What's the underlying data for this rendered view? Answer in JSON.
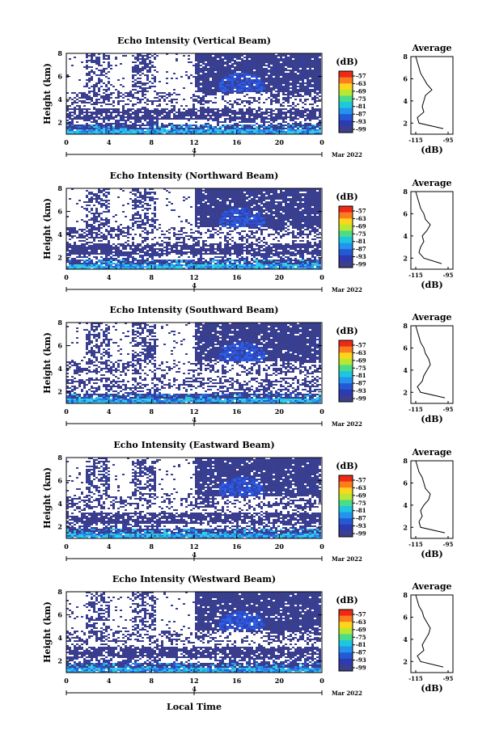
{
  "figure": {
    "xaxis_title": "Local Time",
    "date_label": "Mar 2022",
    "day_label": "4",
    "colorbar_unit": "(dB)",
    "colorbar_ticks": [
      "-57",
      "-63",
      "-69",
      "-75",
      "-81",
      "-87",
      "-93",
      "-99"
    ],
    "colorbar_colors": [
      "#ee2a16",
      "#fb7d1e",
      "#fdd51c",
      "#b8e831",
      "#4bdc8a",
      "#1fc6e0",
      "#2393ee",
      "#2459d6",
      "#2e3bb0",
      "#3c3f8c"
    ],
    "x_ticks": [
      "0",
      "4",
      "8",
      "12",
      "16",
      "20",
      "0"
    ],
    "y_ticks": [
      "2",
      "4",
      "6",
      "8"
    ],
    "y_label": "Height (km)",
    "profile_title": "Average",
    "profile_ticks": [
      "-115",
      "-95"
    ],
    "profile_unit": "(dB)"
  },
  "chart_data": [
    {
      "type": "heatmap",
      "title": "Echo Intensity (Vertical Beam)",
      "xlabel": "Local Time",
      "ylabel": "Height (km)",
      "xlim": [
        0,
        24
      ],
      "ylim": [
        1,
        8
      ],
      "colorbar_range": [
        -99,
        -57
      ],
      "profile": {
        "title": "Average",
        "heights": [
          1.5,
          2.0,
          2.5,
          3.0,
          3.5,
          4.0,
          4.5,
          5.0,
          5.5,
          6.0,
          6.5,
          7.0,
          7.5,
          8.0
        ],
        "values": [
          -98,
          -113,
          -114,
          -110,
          -111,
          -110,
          -109,
          -105,
          -108,
          -110,
          -112,
          -113,
          -114,
          -115
        ]
      }
    },
    {
      "type": "heatmap",
      "title": "Echo Intensity (Northward Beam)",
      "xlabel": "Local Time",
      "ylabel": "Height (km)",
      "xlim": [
        0,
        24
      ],
      "ylim": [
        1,
        8
      ],
      "colorbar_range": [
        -99,
        -57
      ],
      "profile": {
        "title": "Average",
        "heights": [
          1.5,
          2.0,
          2.5,
          3.0,
          3.5,
          4.0,
          4.5,
          5.0,
          5.5,
          6.0,
          6.5,
          7.0,
          7.5,
          8.0
        ],
        "values": [
          -99,
          -110,
          -113,
          -112,
          -110,
          -111,
          -108,
          -106,
          -109,
          -110,
          -112,
          -113,
          -114,
          -115
        ]
      }
    },
    {
      "type": "heatmap",
      "title": "Echo Intensity (Southward Beam)",
      "xlabel": "Local Time",
      "ylabel": "Height (km)",
      "xlim": [
        0,
        24
      ],
      "ylim": [
        1,
        8
      ],
      "colorbar_range": [
        -99,
        -57
      ],
      "profile": {
        "title": "Average",
        "heights": [
          1.5,
          2.0,
          2.5,
          3.0,
          3.5,
          4.0,
          4.5,
          5.0,
          5.5,
          6.0,
          6.5,
          7.0,
          7.5,
          8.0
        ],
        "values": [
          -97,
          -112,
          -114,
          -111,
          -110,
          -108,
          -106,
          -107,
          -109,
          -110,
          -112,
          -113,
          -114,
          -115
        ]
      }
    },
    {
      "type": "heatmap",
      "title": "Echo Intensity (Eastward Beam)",
      "xlabel": "Local Time",
      "ylabel": "Height (km)",
      "xlim": [
        0,
        24
      ],
      "ylim": [
        1,
        8
      ],
      "colorbar_range": [
        -99,
        -57
      ],
      "profile": {
        "title": "Average",
        "heights": [
          1.5,
          2.0,
          2.5,
          3.0,
          3.5,
          4.0,
          4.5,
          5.0,
          5.5,
          6.0,
          6.5,
          7.0,
          7.5,
          8.0
        ],
        "values": [
          -97,
          -112,
          -113,
          -111,
          -112,
          -110,
          -107,
          -106,
          -109,
          -110,
          -111,
          -113,
          -114,
          -115
        ]
      }
    },
    {
      "type": "heatmap",
      "title": "Echo Intensity (Westward Beam)",
      "xlabel": "Local Time",
      "ylabel": "Height (km)",
      "xlim": [
        0,
        24
      ],
      "ylim": [
        1,
        8
      ],
      "colorbar_range": [
        -99,
        -57
      ],
      "profile": {
        "title": "Average",
        "heights": [
          1.5,
          2.0,
          2.5,
          3.0,
          3.5,
          4.0,
          4.5,
          5.0,
          5.5,
          6.0,
          6.5,
          7.0,
          7.5,
          8.0
        ],
        "values": [
          -98,
          -112,
          -114,
          -110,
          -111,
          -109,
          -107,
          -106,
          -108,
          -110,
          -111,
          -113,
          -114,
          -115
        ]
      }
    }
  ]
}
